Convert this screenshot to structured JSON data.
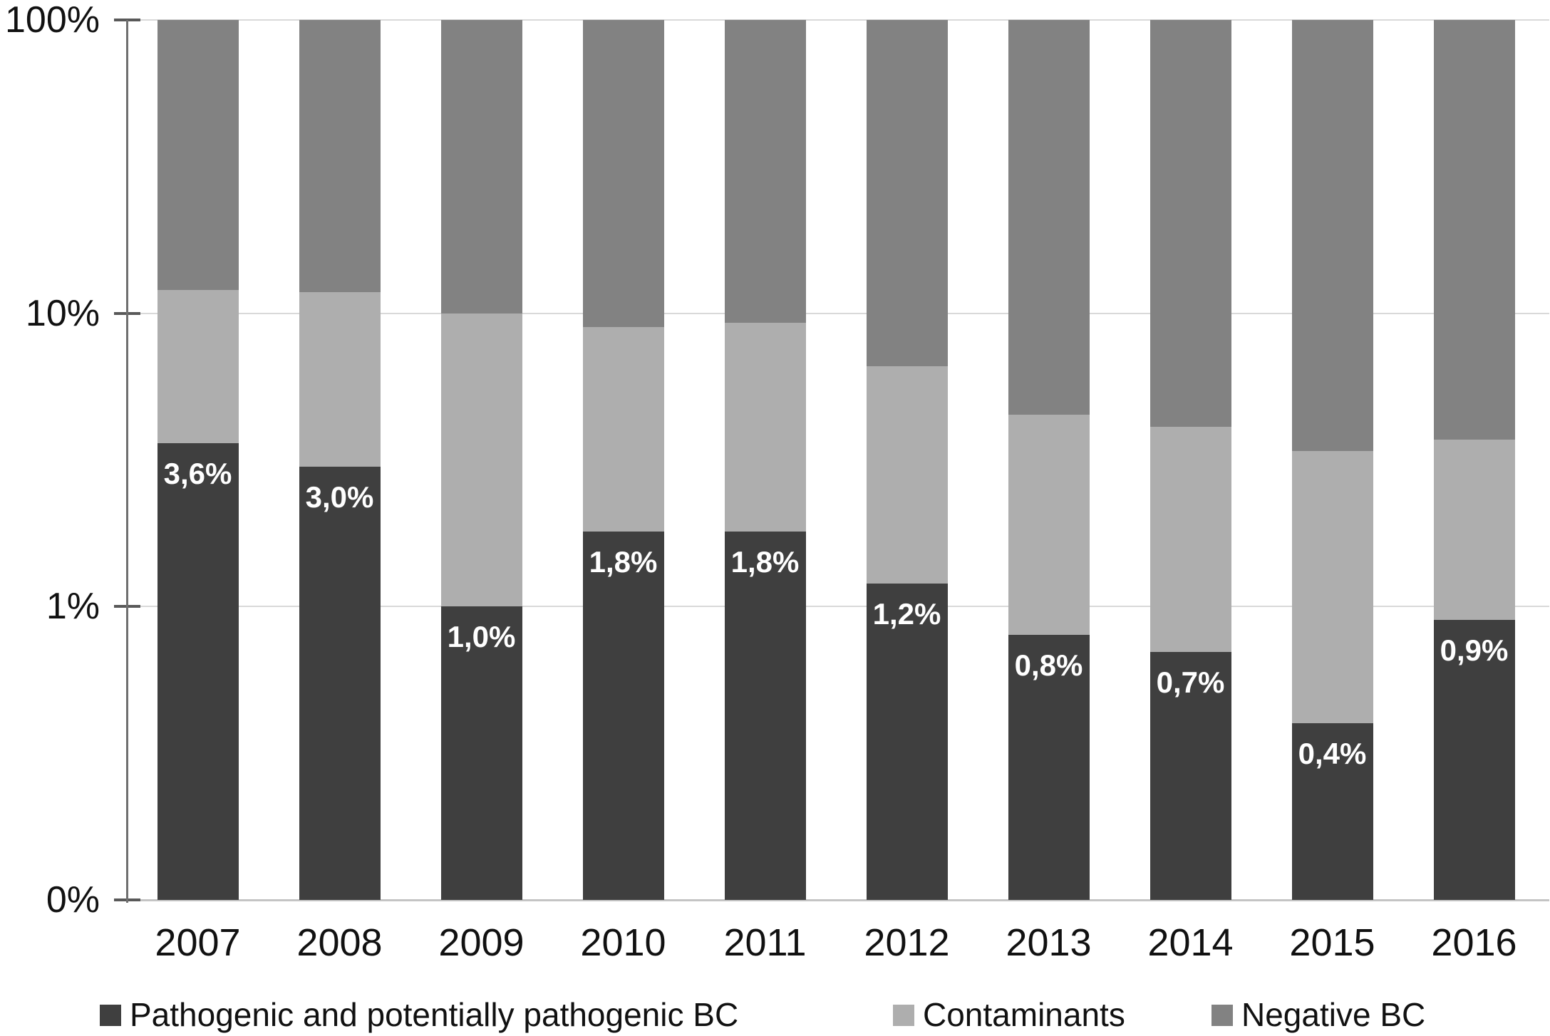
{
  "chart_data": {
    "type": "bar",
    "stacked": true,
    "title": "",
    "categories": [
      "2007",
      "2008",
      "2009",
      "2010",
      "2011",
      "2012",
      "2013",
      "2014",
      "2015",
      "2016"
    ],
    "series": [
      {
        "name": "Pathogenic and potentially pathogenic BC",
        "color": "#3f3f3f",
        "values": [
          3.6,
          3.0,
          1.0,
          1.8,
          1.8,
          1.2,
          0.8,
          0.7,
          0.4,
          0.9
        ],
        "data_labels": [
          "3,6%",
          "3,0%",
          "1,0%",
          "1,8%",
          "1,8%",
          "1,2%",
          "0,8%",
          "0,7%",
          "0,4%",
          "0,9%"
        ],
        "data_label_color": "#ffffff"
      },
      {
        "name": "Contaminants",
        "color": "#aeaeae",
        "values": [
          8.4,
          8.8,
          9.0,
          7.2,
          7.5,
          5.4,
          3.7,
          3.4,
          3.0,
          2.8
        ]
      },
      {
        "name": "Negative BC",
        "color": "#828282",
        "values": [
          88.0,
          88.2,
          90.0,
          91.0,
          90.7,
          93.4,
          95.5,
          95.9,
          96.6,
          96.3
        ]
      }
    ],
    "y_axis": {
      "scale": "log",
      "min": 0.1,
      "max": 100,
      "ticks": [
        {
          "value": 100,
          "label": "100%"
        },
        {
          "value": 10,
          "label": "10%"
        },
        {
          "value": 1,
          "label": "1%"
        },
        {
          "value": 0.1,
          "label": "0%"
        }
      ],
      "gridlines": true
    },
    "x_axis": {
      "label": ""
    },
    "legend": {
      "position": "bottom",
      "items": [
        {
          "label": "Pathogenic and potentially pathogenic BC",
          "color": "#3f3f3f"
        },
        {
          "label": "Contaminants",
          "color": "#aeaeae"
        },
        {
          "label": "Negative BC",
          "color": "#828282"
        }
      ]
    },
    "colors": {
      "gridline": "#d9d9d9",
      "baseline": "#c4c4c4",
      "axis": "#6f6f6f",
      "tick": "#595959",
      "text": "#111111"
    }
  }
}
